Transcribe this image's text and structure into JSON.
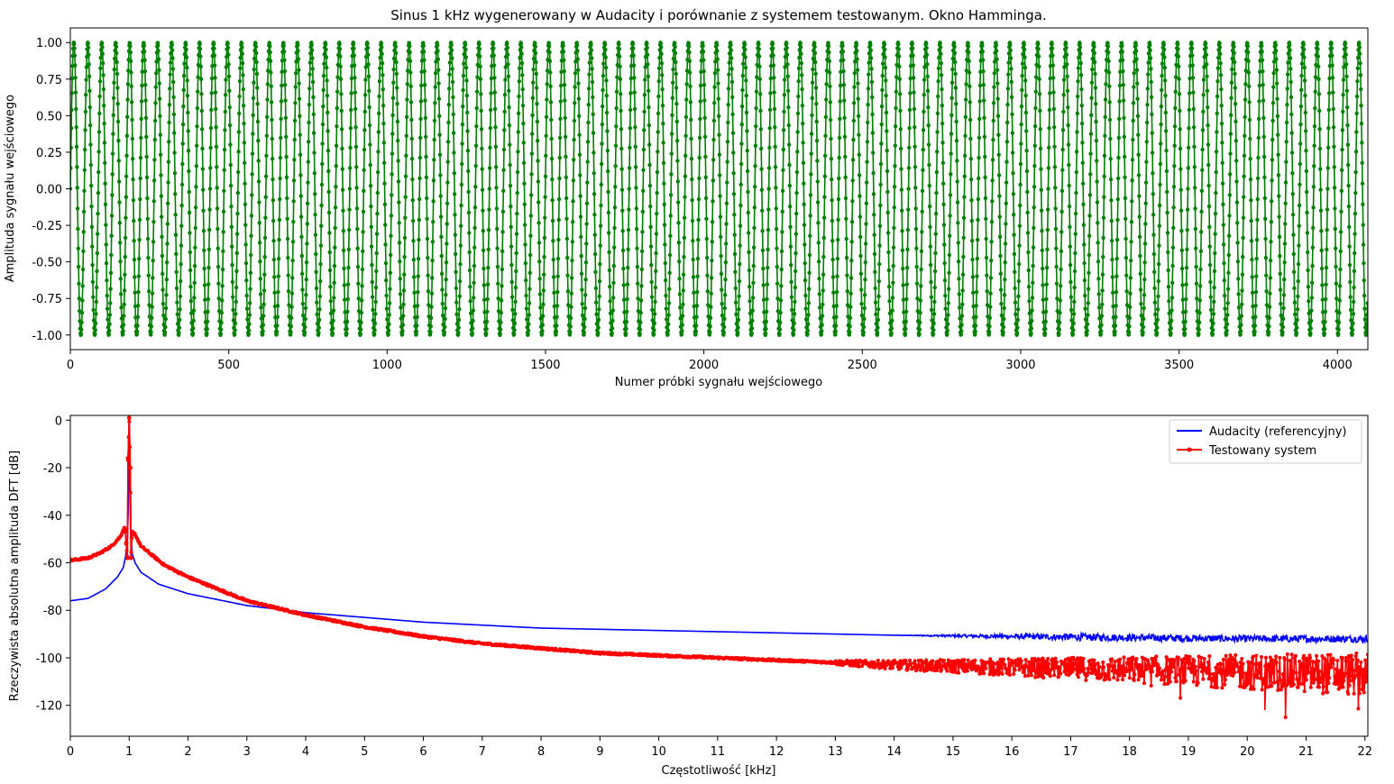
{
  "chart_data": [
    {
      "type": "line",
      "title": "Sinus 1 kHz wygenerowany w Audacity i porównanie z systemem testowanym. Okno Hamminga.",
      "xlabel": "Numer próbki sygnału wejściowego",
      "ylabel": "Amplituda sygnału wejściowego",
      "xlim": [
        0,
        4096
      ],
      "ylim": [
        -1.1,
        1.1
      ],
      "xticks": [
        "0",
        "500",
        "1000",
        "1500",
        "2000",
        "2500",
        "3000",
        "3500",
        "4000"
      ],
      "yticks": [
        "-1.00",
        "-0.75",
        "-0.50",
        "-0.25",
        "0.00",
        "0.25",
        "0.50",
        "0.75",
        "1.00"
      ],
      "series": [
        {
          "color": "#008000",
          "marker": "dot",
          "sample_rate_hz": 44100,
          "frequency_hz": 1000,
          "amplitude": 1.0,
          "num_samples": 4096
        }
      ]
    },
    {
      "type": "line",
      "title": "",
      "xlabel": "Częstotliwość [kHz]",
      "ylabel": "Rzeczywista absolutna amplituda DFT [dB]",
      "xlim": [
        0,
        22.05
      ],
      "ylim": [
        -133,
        2
      ],
      "xticks": [
        "0",
        "1",
        "2",
        "3",
        "4",
        "5",
        "6",
        "7",
        "8",
        "9",
        "10",
        "11",
        "12",
        "13",
        "14",
        "15",
        "16",
        "17",
        "18",
        "19",
        "20",
        "21",
        "22"
      ],
      "yticks": [
        "0",
        "-20",
        "-40",
        "-60",
        "-80",
        "-100",
        "-120"
      ],
      "legend_position": "top-right",
      "series": [
        {
          "name": "Audacity (referencyjny)",
          "color": "#0000ff",
          "x": [
            0,
            0.3,
            0.6,
            0.8,
            0.9,
            0.95,
            0.98,
            1.0,
            1.02,
            1.05,
            1.1,
            1.2,
            1.5,
            2,
            3,
            4,
            6,
            8,
            10,
            12,
            14,
            16,
            18,
            20,
            22
          ],
          "y": [
            -76,
            -75,
            -71,
            -66,
            -62,
            -56,
            -45,
            0,
            -45,
            -56,
            -60,
            -64,
            -69,
            -73,
            -78,
            -81,
            -85,
            -87.5,
            -88.5,
            -89.5,
            -90.5,
            -91,
            -91.5,
            -92,
            -92
          ]
        },
        {
          "name": "Testowany system",
          "color": "#ff0000",
          "marker": "dot",
          "x": [
            0,
            0.3,
            0.5,
            0.7,
            0.85,
            0.9,
            0.93,
            0.95,
            0.97,
            0.98,
            1.0,
            1.02,
            1.03,
            1.05,
            1.1,
            1.2,
            1.4,
            1.6,
            2,
            2.5,
            3,
            3.5,
            4,
            5,
            6,
            7,
            8,
            9,
            10,
            11,
            12,
            13,
            14,
            15,
            16,
            17,
            18,
            19,
            20,
            21,
            22
          ],
          "y": [
            -59,
            -58,
            -56,
            -53,
            -49,
            -46,
            -45,
            -52,
            -58,
            -16,
            1,
            -20,
            -58,
            -47,
            -48,
            -53,
            -57,
            -61,
            -66,
            -71,
            -76,
            -79,
            -82,
            -87,
            -91,
            -94,
            -96,
            -98,
            -99,
            -100,
            -101,
            -102,
            -103,
            -103.5,
            -104,
            -104.5,
            -105,
            -105.5,
            -106,
            -106.5,
            -107
          ]
        }
      ]
    }
  ]
}
